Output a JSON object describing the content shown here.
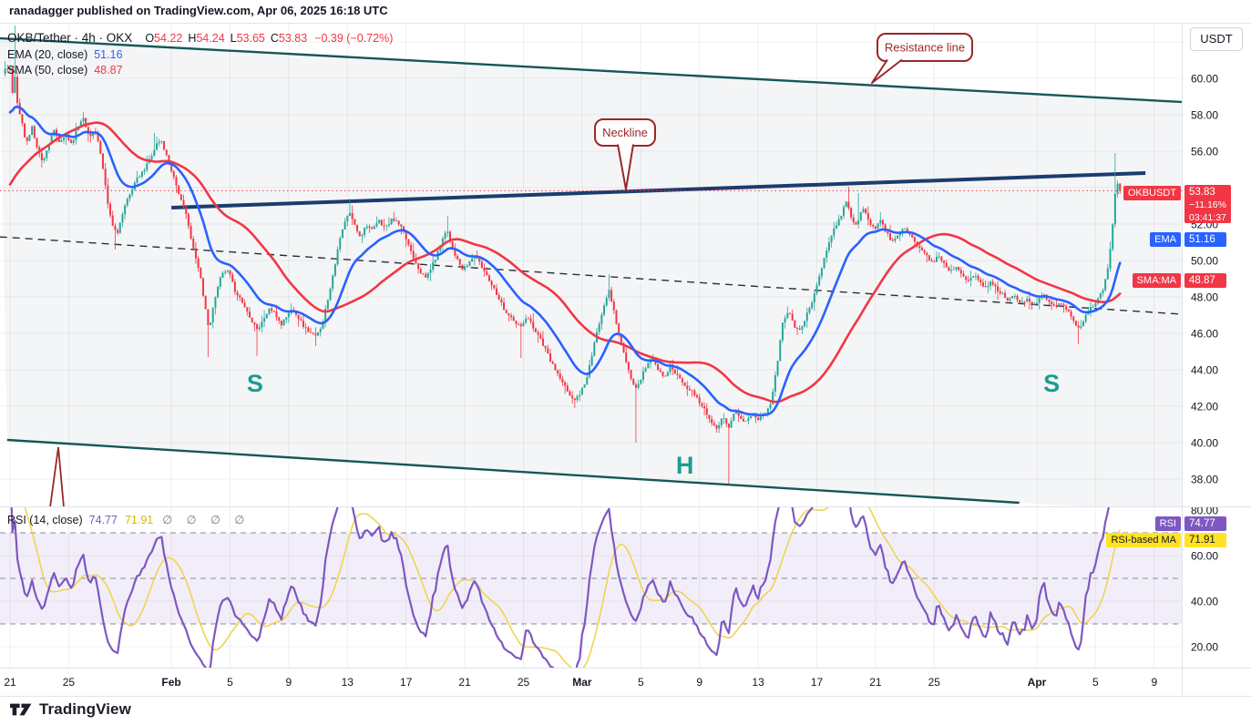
{
  "header": {
    "published_line": "ranadagger published on TradingView.com, Apr 06, 2025 16:18 UTC"
  },
  "legend": {
    "title": "OKB/Tether · 4h · OKX",
    "ohlc": [
      {
        "k": "O",
        "v": "54.22"
      },
      {
        "k": "H",
        "v": "54.24"
      },
      {
        "k": "L",
        "v": "53.65"
      },
      {
        "k": "C",
        "v": "53.83"
      }
    ],
    "change": "−0.39 (−0.72%)",
    "ema": {
      "label": "EMA (20, close)",
      "value": "51.16"
    },
    "sma": {
      "label": "SMA (50, close)",
      "value": "48.87"
    },
    "rsi": {
      "label": "RSI (14, close)",
      "value": "74.77",
      "ma_value": "71.91",
      "empty": "∅ ∅ ∅ ∅"
    }
  },
  "axis": {
    "currency": "USDT"
  },
  "badges": {
    "symbol": {
      "tag": "OKBUSDT",
      "price": "53.83",
      "change_pct": "−11.16%",
      "countdown": "03:41:37"
    },
    "ema": {
      "tag": "EMA",
      "value": "51.16"
    },
    "sma": {
      "tag": "SMA:MA",
      "value": "48.87"
    },
    "rsi": {
      "tag": "RSI",
      "value": "74.77"
    },
    "rsi_ma": {
      "tag": "RSI-based MA",
      "value": "71.91"
    }
  },
  "annotations": {
    "resistance": "Resistance line",
    "neckline": "Neckline",
    "s_left": "S",
    "head": "H",
    "s_right": "S"
  },
  "footer": {
    "brand": "TradingView"
  },
  "chart_data": {
    "type": "candlestick",
    "symbol": "OKB/Tether",
    "interval": "4h",
    "exchange": "OKX",
    "ohlc": {
      "o": 54.22,
      "h": 54.24,
      "l": 53.65,
      "c": 53.83,
      "change": -0.39,
      "change_pct": -0.72
    },
    "last": {
      "price": 53.83,
      "session_change_pct": -11.16,
      "bar_countdown": "03:41:37"
    },
    "indicators": {
      "ema20": 51.16,
      "sma50": 48.87,
      "rsi14": 74.77,
      "rsi_based_ma": 71.91
    },
    "price_axis": {
      "min": 36.5,
      "max": 63.0,
      "ticks": [
        60,
        58,
        56,
        52,
        50,
        48,
        46,
        44,
        42,
        40,
        38
      ],
      "grid": [
        62,
        60,
        58,
        56,
        54,
        52,
        50,
        48,
        46,
        44,
        42,
        40,
        38
      ]
    },
    "rsi_axis": {
      "ticks": [
        80,
        60,
        40,
        20
      ],
      "grid": [
        60,
        40,
        20
      ],
      "dashed_levels": [
        70,
        50,
        30
      ],
      "band": [
        30,
        70
      ]
    },
    "time_ticks": [
      {
        "d": 0,
        "label": "21"
      },
      {
        "d": 4,
        "label": "25"
      },
      {
        "d": 11,
        "label": "Feb",
        "month": true
      },
      {
        "d": 15,
        "label": "5"
      },
      {
        "d": 19,
        "label": "9"
      },
      {
        "d": 23,
        "label": "13"
      },
      {
        "d": 27,
        "label": "17"
      },
      {
        "d": 31,
        "label": "21"
      },
      {
        "d": 35,
        "label": "25"
      },
      {
        "d": 39,
        "label": "Mar",
        "month": true
      },
      {
        "d": 43,
        "label": "5"
      },
      {
        "d": 47,
        "label": "9"
      },
      {
        "d": 51,
        "label": "13"
      },
      {
        "d": 55,
        "label": "17"
      },
      {
        "d": 59,
        "label": "21"
      },
      {
        "d": 63,
        "label": "25"
      },
      {
        "d": 70,
        "label": "Apr",
        "month": true
      },
      {
        "d": 74,
        "label": "5"
      },
      {
        "d": 78,
        "label": "9"
      }
    ],
    "prefix_path": [
      [
        -10,
        47.5
      ],
      [
        -8.5,
        48.6
      ],
      [
        -7,
        50.2
      ],
      [
        -5.5,
        51.8
      ],
      [
        -4,
        53.6
      ],
      [
        -3,
        55.2
      ],
      [
        -2,
        57.2
      ],
      [
        -1,
        59.3
      ],
      [
        -0.4,
        60.4
      ]
    ],
    "close_path": [
      [
        0,
        60.6
      ],
      [
        0.17,
        59.2
      ],
      [
        0.33,
        60.2
      ],
      [
        0.5,
        58.6
      ],
      [
        0.8,
        57.6
      ],
      [
        1.1,
        56.4
      ],
      [
        1.5,
        57.3
      ],
      [
        1.9,
        56.1
      ],
      [
        2.2,
        55.4
      ],
      [
        2.6,
        56.3
      ],
      [
        3,
        57.1
      ],
      [
        3.4,
        56.4
      ],
      [
        3.8,
        56.9
      ],
      [
        4.2,
        56.4
      ],
      [
        4.6,
        57.3
      ],
      [
        5,
        57.9
      ],
      [
        5.4,
        56.7
      ],
      [
        5.8,
        57.2
      ],
      [
        6.1,
        56.2
      ],
      [
        6.4,
        54.6
      ],
      [
        6.7,
        52.9
      ],
      [
        7,
        51.9
      ],
      [
        7.3,
        51.5
      ],
      [
        7.7,
        52.6
      ],
      [
        8.1,
        53.6
      ],
      [
        8.6,
        54.4
      ],
      [
        9.1,
        54.9
      ],
      [
        9.6,
        55.7
      ],
      [
        10,
        56.4
      ],
      [
        10.3,
        56.6
      ],
      [
        10.6,
        55.9
      ],
      [
        10.9,
        55.2
      ],
      [
        11.2,
        54.5
      ],
      [
        11.5,
        53.7
      ],
      [
        11.8,
        52.9
      ],
      [
        12.1,
        52.3
      ],
      [
        12.4,
        50.9
      ],
      [
        12.7,
        50
      ],
      [
        13,
        49
      ],
      [
        13.3,
        47.5
      ],
      [
        13.55,
        46.2
      ],
      [
        13.8,
        47.2
      ],
      [
        14.1,
        48.5
      ],
      [
        14.5,
        49.3
      ],
      [
        14.9,
        49.4
      ],
      [
        15.3,
        48.4
      ],
      [
        15.7,
        47.9
      ],
      [
        16.1,
        47.3
      ],
      [
        16.5,
        46.7
      ],
      [
        16.9,
        46.2
      ],
      [
        17.3,
        46.8
      ],
      [
        17.7,
        47.4
      ],
      [
        18.1,
        47
      ],
      [
        18.5,
        46.5
      ],
      [
        18.9,
        47
      ],
      [
        19.3,
        47.4
      ],
      [
        19.7,
        46.8
      ],
      [
        20.1,
        46.3
      ],
      [
        20.5,
        46
      ],
      [
        20.9,
        45.8
      ],
      [
        21.3,
        46.6
      ],
      [
        21.7,
        48
      ],
      [
        22.1,
        49.6
      ],
      [
        22.5,
        51.2
      ],
      [
        22.9,
        52.3
      ],
      [
        23.2,
        52.6
      ],
      [
        23.5,
        51.9
      ],
      [
        23.9,
        51.3
      ],
      [
        24.3,
        52
      ],
      [
        24.7,
        51.6
      ],
      [
        25.1,
        52.2
      ],
      [
        25.6,
        51.8
      ],
      [
        26.1,
        52.3
      ],
      [
        26.6,
        51.9
      ],
      [
        27.1,
        51
      ],
      [
        27.5,
        50.2
      ],
      [
        27.9,
        49.5
      ],
      [
        28.3,
        49
      ],
      [
        28.7,
        49.6
      ],
      [
        29.1,
        50.3
      ],
      [
        29.5,
        51.3
      ],
      [
        29.8,
        51.7
      ],
      [
        30.1,
        50.8
      ],
      [
        30.5,
        50
      ],
      [
        30.9,
        49.4
      ],
      [
        31.3,
        49.9
      ],
      [
        31.7,
        50.3
      ],
      [
        32.1,
        49.7
      ],
      [
        32.5,
        49.2
      ],
      [
        32.9,
        48.6
      ],
      [
        33.3,
        48
      ],
      [
        33.7,
        47.3
      ],
      [
        34.1,
        46.9
      ],
      [
        34.5,
        46.5
      ],
      [
        34.9,
        46.4
      ],
      [
        35.3,
        46.9
      ],
      [
        35.7,
        46.3
      ],
      [
        36.1,
        45.8
      ],
      [
        36.5,
        45.1
      ],
      [
        36.9,
        44.4
      ],
      [
        37.3,
        43.8
      ],
      [
        37.7,
        43.2
      ],
      [
        38.1,
        42.7
      ],
      [
        38.5,
        42.3
      ],
      [
        38.9,
        42.8
      ],
      [
        39.3,
        43.5
      ],
      [
        39.7,
        44.9
      ],
      [
        40.1,
        46.4
      ],
      [
        40.5,
        47.6
      ],
      [
        40.8,
        48.4
      ],
      [
        41.1,
        47.5
      ],
      [
        41.4,
        46.3
      ],
      [
        41.8,
        45
      ],
      [
        42.2,
        43.8
      ],
      [
        42.6,
        42.9
      ],
      [
        43,
        43.5
      ],
      [
        43.4,
        44.3
      ],
      [
        43.8,
        44.6
      ],
      [
        44.2,
        44
      ],
      [
        44.6,
        43.6
      ],
      [
        45,
        44.2
      ],
      [
        45.4,
        43.8
      ],
      [
        45.8,
        43.4
      ],
      [
        46.2,
        43
      ],
      [
        46.6,
        42.7
      ],
      [
        47,
        42.2
      ],
      [
        47.4,
        41.8
      ],
      [
        47.8,
        41.1
      ],
      [
        48.2,
        40.7
      ],
      [
        48.6,
        41.4
      ],
      [
        49,
        40.9
      ],
      [
        49.4,
        41.8
      ],
      [
        49.8,
        41.4
      ],
      [
        50.2,
        41.1
      ],
      [
        50.6,
        41.7
      ],
      [
        51,
        41.3
      ],
      [
        51.4,
        41.6
      ],
      [
        51.9,
        42.3
      ],
      [
        52.3,
        44.4
      ],
      [
        52.7,
        46.7
      ],
      [
        53.1,
        47.3
      ],
      [
        53.5,
        46.4
      ],
      [
        53.9,
        46.1
      ],
      [
        54.3,
        47
      ],
      [
        54.7,
        47.8
      ],
      [
        55.1,
        48.9
      ],
      [
        55.5,
        50.1
      ],
      [
        55.9,
        51.2
      ],
      [
        56.3,
        51.9
      ],
      [
        56.7,
        52.6
      ],
      [
        57,
        53.3
      ],
      [
        57.3,
        52.5
      ],
      [
        57.6,
        51.8
      ],
      [
        57.9,
        52.4
      ],
      [
        58.2,
        52.9
      ],
      [
        58.5,
        52.3
      ],
      [
        58.9,
        51.7
      ],
      [
        59.3,
        52.2
      ],
      [
        59.7,
        51.6
      ],
      [
        60.1,
        51
      ],
      [
        60.5,
        51.4
      ],
      [
        60.9,
        51.9
      ],
      [
        61.3,
        51.5
      ],
      [
        61.7,
        51
      ],
      [
        62.1,
        50.6
      ],
      [
        62.5,
        50.2
      ],
      [
        62.9,
        49.9
      ],
      [
        63.3,
        50.3
      ],
      [
        63.7,
        49.8
      ],
      [
        64.1,
        49.4
      ],
      [
        64.5,
        49.7
      ],
      [
        64.9,
        49.3
      ],
      [
        65.3,
        48.9
      ],
      [
        65.7,
        49.2
      ],
      [
        66.1,
        48.8
      ],
      [
        66.5,
        48.5
      ],
      [
        66.9,
        48.8
      ],
      [
        67.3,
        48.4
      ],
      [
        67.7,
        48.1
      ],
      [
        68.1,
        47.8
      ],
      [
        68.5,
        48.1
      ],
      [
        68.9,
        47.7
      ],
      [
        69.3,
        47.9
      ],
      [
        69.7,
        47.5
      ],
      [
        70.1,
        47.8
      ],
      [
        70.5,
        48.1
      ],
      [
        70.9,
        47.7
      ],
      [
        71.3,
        47.4
      ],
      [
        71.7,
        47.7
      ],
      [
        72.1,
        47.2
      ],
      [
        72.5,
        46.7
      ],
      [
        72.9,
        46.2
      ],
      [
        73.3,
        46.9
      ],
      [
        73.7,
        47.4
      ],
      [
        74.1,
        47.8
      ],
      [
        74.5,
        48.4
      ],
      [
        74.9,
        49.9
      ],
      [
        75.15,
        51.8
      ],
      [
        75.35,
        53.8
      ],
      [
        75.5,
        54.7
      ],
      [
        75.68,
        53.83
      ]
    ],
    "wick_events": [
      {
        "d": 0.3,
        "h": 62.9
      },
      {
        "d": 7.2,
        "l": 50.6
      },
      {
        "d": 9.9,
        "h": 57
      },
      {
        "d": 13.55,
        "l": 44.7
      },
      {
        "d": 16.9,
        "l": 44.75
      },
      {
        "d": 20.9,
        "l": 45.3
      },
      {
        "d": 23.1,
        "h": 53.4
      },
      {
        "d": 29.8,
        "h": 52.45
      },
      {
        "d": 34.9,
        "l": 44.65
      },
      {
        "d": 38.5,
        "l": 41.9
      },
      {
        "d": 40.8,
        "h": 49.25
      },
      {
        "d": 42.6,
        "l": 40
      },
      {
        "d": 49,
        "l": 37.75
      },
      {
        "d": 57.1,
        "h": 54.05
      },
      {
        "d": 57.9,
        "h": 53.7
      },
      {
        "d": 72.9,
        "l": 45.4
      },
      {
        "d": 75.4,
        "h": 55.9
      }
    ],
    "trendlines": {
      "resistance": {
        "pts": [
          [
            -0.7,
            62.2
          ],
          [
            79.9,
            58.7
          ]
        ]
      },
      "channel_low": {
        "pts": [
          [
            -0.2,
            40.15
          ],
          [
            68.8,
            36.7
          ]
        ],
        "fill_end": [
          79.9,
          36.15
        ]
      },
      "neckline": {
        "pts": [
          [
            11.0,
            52.9
          ],
          [
            77.4,
            54.8
          ]
        ]
      },
      "downtrend_dashed": {
        "pts": [
          [
            -0.7,
            51.3
          ],
          [
            79.9,
            47.05
          ]
        ]
      }
    },
    "price_line": 53.83,
    "markers": {
      "s_left": {
        "d": 16.7,
        "p": 43.3
      },
      "head": {
        "d": 46.0,
        "p": 38.8
      },
      "s_right": {
        "d": 71.0,
        "p": 43.3
      }
    },
    "callouts": {
      "resistance": {
        "bubble": [
          963,
          37,
          104,
          30
        ],
        "attach_x": [
          974,
          990
        ],
        "tip": [
          957,
          91
        ]
      },
      "neckline": {
        "bubble": [
          653,
          131,
          66,
          29
        ],
        "attach_x": [
          678,
          695
        ],
        "tip": [
          687,
          208
        ]
      },
      "arrow": {
        "apex": [
          64,
          491
        ],
        "base": [
          [
            55,
            557
          ],
          [
            70,
            557
          ]
        ]
      }
    },
    "colors": {
      "up": "#26a69a",
      "down": "#f23645",
      "ema": "#2962ff",
      "sma": "#f23645",
      "rsi": "#7e57c2",
      "rsi_ma": "#f0d450",
      "neckline": "#1b3c6e",
      "channel": "#155756",
      "callout": "#9b2727",
      "shs": "#1d9c8f",
      "band_fill": "rgba(126,87,194,0.10)",
      "grid": "rgba(42,46,57,0.07)",
      "badge_yellow": "#ffe226",
      "badge_purple": "#7e57c2",
      "badge_red": "#f23645",
      "badge_blue": "#2962ff",
      "channel_fill": "rgba(37,66,84,0.05)"
    },
    "seed": 11,
    "noise": 0.2,
    "wick": 0.5
  }
}
